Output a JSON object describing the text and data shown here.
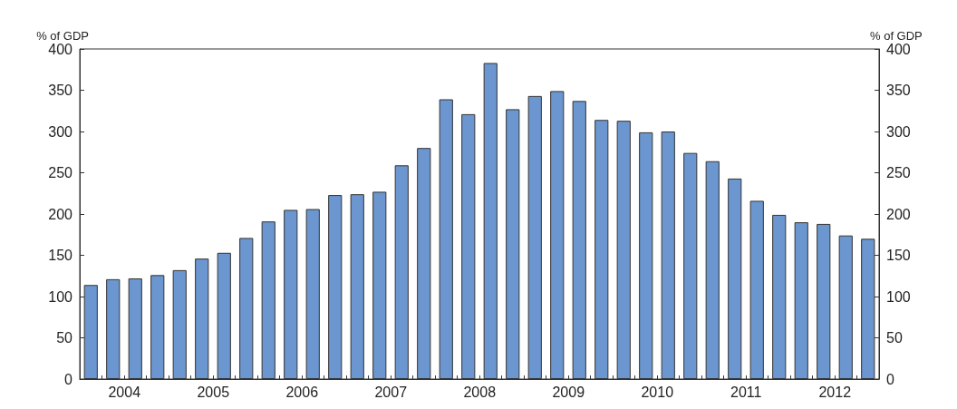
{
  "chart_data": {
    "type": "bar",
    "ylabel": "% of GDP",
    "y2label": "% of GDP",
    "categories": [
      null,
      "2004",
      null,
      null,
      null,
      "2005",
      null,
      null,
      null,
      "2006",
      null,
      null,
      null,
      "2007",
      null,
      null,
      null,
      "2008",
      null,
      null,
      null,
      "2009",
      null,
      null,
      null,
      "2010",
      null,
      null,
      null,
      "2011",
      null,
      null,
      null,
      "2012",
      null,
      null
    ],
    "series": [
      {
        "color": "#6b96cf",
        "values": [
          114,
          121,
          122,
          126,
          132,
          146,
          153,
          171,
          191,
          205,
          206,
          223,
          224,
          227,
          259,
          280,
          339,
          321,
          383,
          327,
          343,
          349,
          337,
          314,
          313,
          299,
          300,
          274,
          264,
          243,
          216,
          199,
          190,
          188,
          174,
          170
        ]
      }
    ],
    "ylim": [
      0,
      400
    ],
    "yticks": [
      0,
      50,
      100,
      150,
      200,
      250,
      300,
      350,
      400
    ],
    "y2lim": [
      0,
      400
    ],
    "y2ticks": [
      0,
      50,
      100,
      150,
      200,
      250,
      300,
      350,
      400
    ],
    "grid": false
  }
}
